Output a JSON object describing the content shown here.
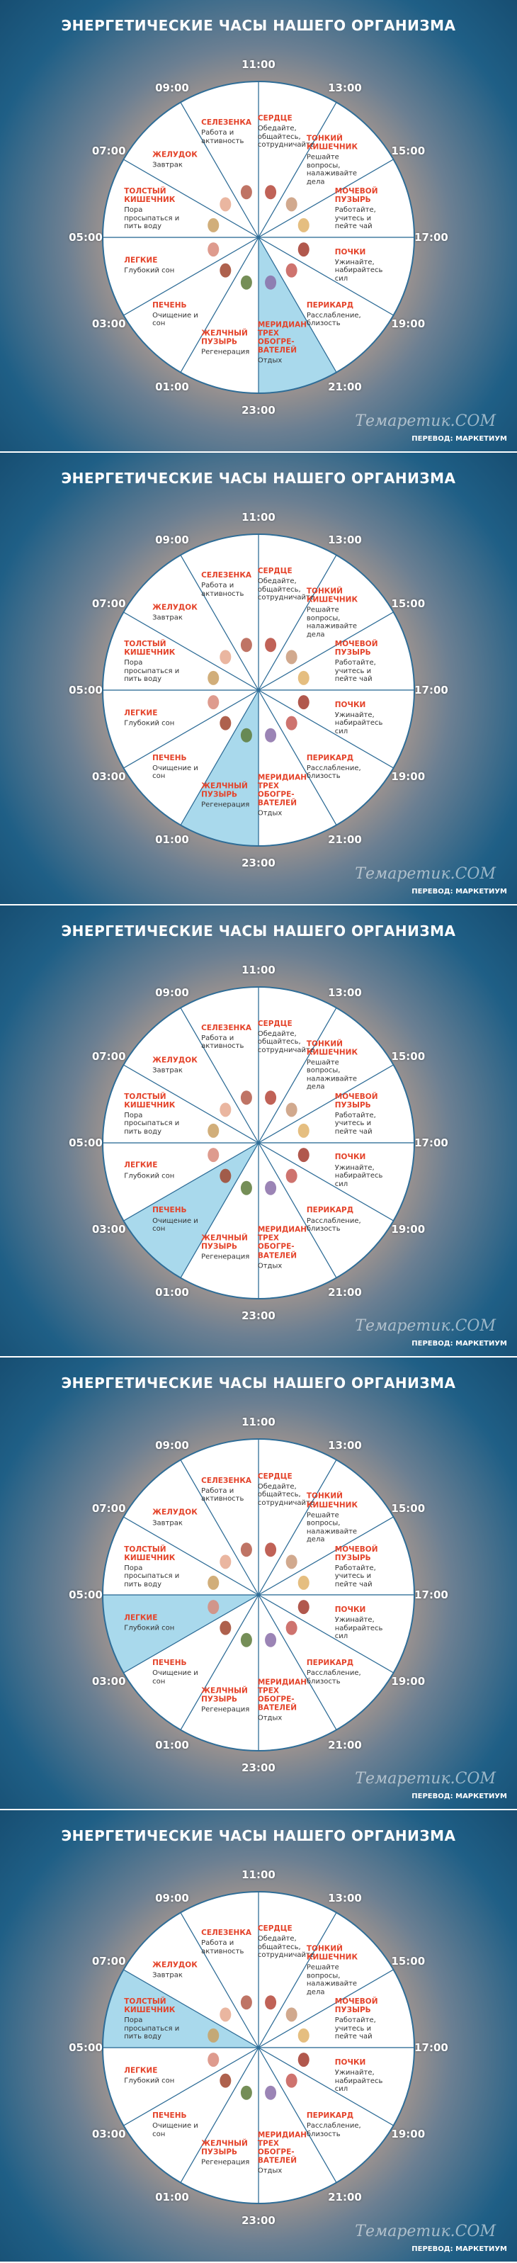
{
  "title": "ЭНЕРГЕТИЧЕСКИЕ ЧАСЫ НАШЕГО ОРГАНИЗМА",
  "credit": "ПЕРЕВОД: МАРКЕТИУМ",
  "watermark": "Темаретик.COM",
  "times": [
    "11:00",
    "13:00",
    "15:00",
    "17:00",
    "19:00",
    "21:00",
    "23:00",
    "01:00",
    "03:00",
    "05:00",
    "07:00",
    "09:00"
  ],
  "sectors": [
    {
      "name": "СЕРДЦЕ",
      "text": "Обедайте, общайтесь, сотрудничайте"
    },
    {
      "name": "ТОНКИЙ\nКИШЕЧНИК",
      "text": "Решайте вопросы, налаживайте дела"
    },
    {
      "name": "МОЧЕВОЙ\nПУЗЫРЬ",
      "text": "Работайте, учитесь и пейте чай"
    },
    {
      "name": "ПОЧКИ",
      "text": "Ужинайте, набирайтесь сил"
    },
    {
      "name": "ПЕРИКАРД",
      "text": "Расслабление, близость"
    },
    {
      "name": "МЕРИДИАН\nТРЕХ ОБОГРЕ-\nВАТЕЛЕЙ",
      "text": "Отдых"
    },
    {
      "name": "ЖЕЛЧНЫЙ\nПУЗЫРЬ",
      "text": "Регенерация"
    },
    {
      "name": "ПЕЧЕНЬ",
      "text": "Очищение и сон"
    },
    {
      "name": "ЛЕГКИЕ",
      "text": "Глубокий сон"
    },
    {
      "name": "ТОЛСТЫЙ\nКИШЕЧНИК",
      "text": "Пора просыпаться и пить воду"
    },
    {
      "name": "ЖЕЛУДОК",
      "text": "Завтрак"
    },
    {
      "name": "СЕЛЕЗЕНКА",
      "text": "Работа и активность"
    }
  ],
  "panels": [
    {
      "highlight": 5
    },
    {
      "highlight": 6
    },
    {
      "highlight": 7
    },
    {
      "highlight": 8
    },
    {
      "highlight": 9
    }
  ]
}
